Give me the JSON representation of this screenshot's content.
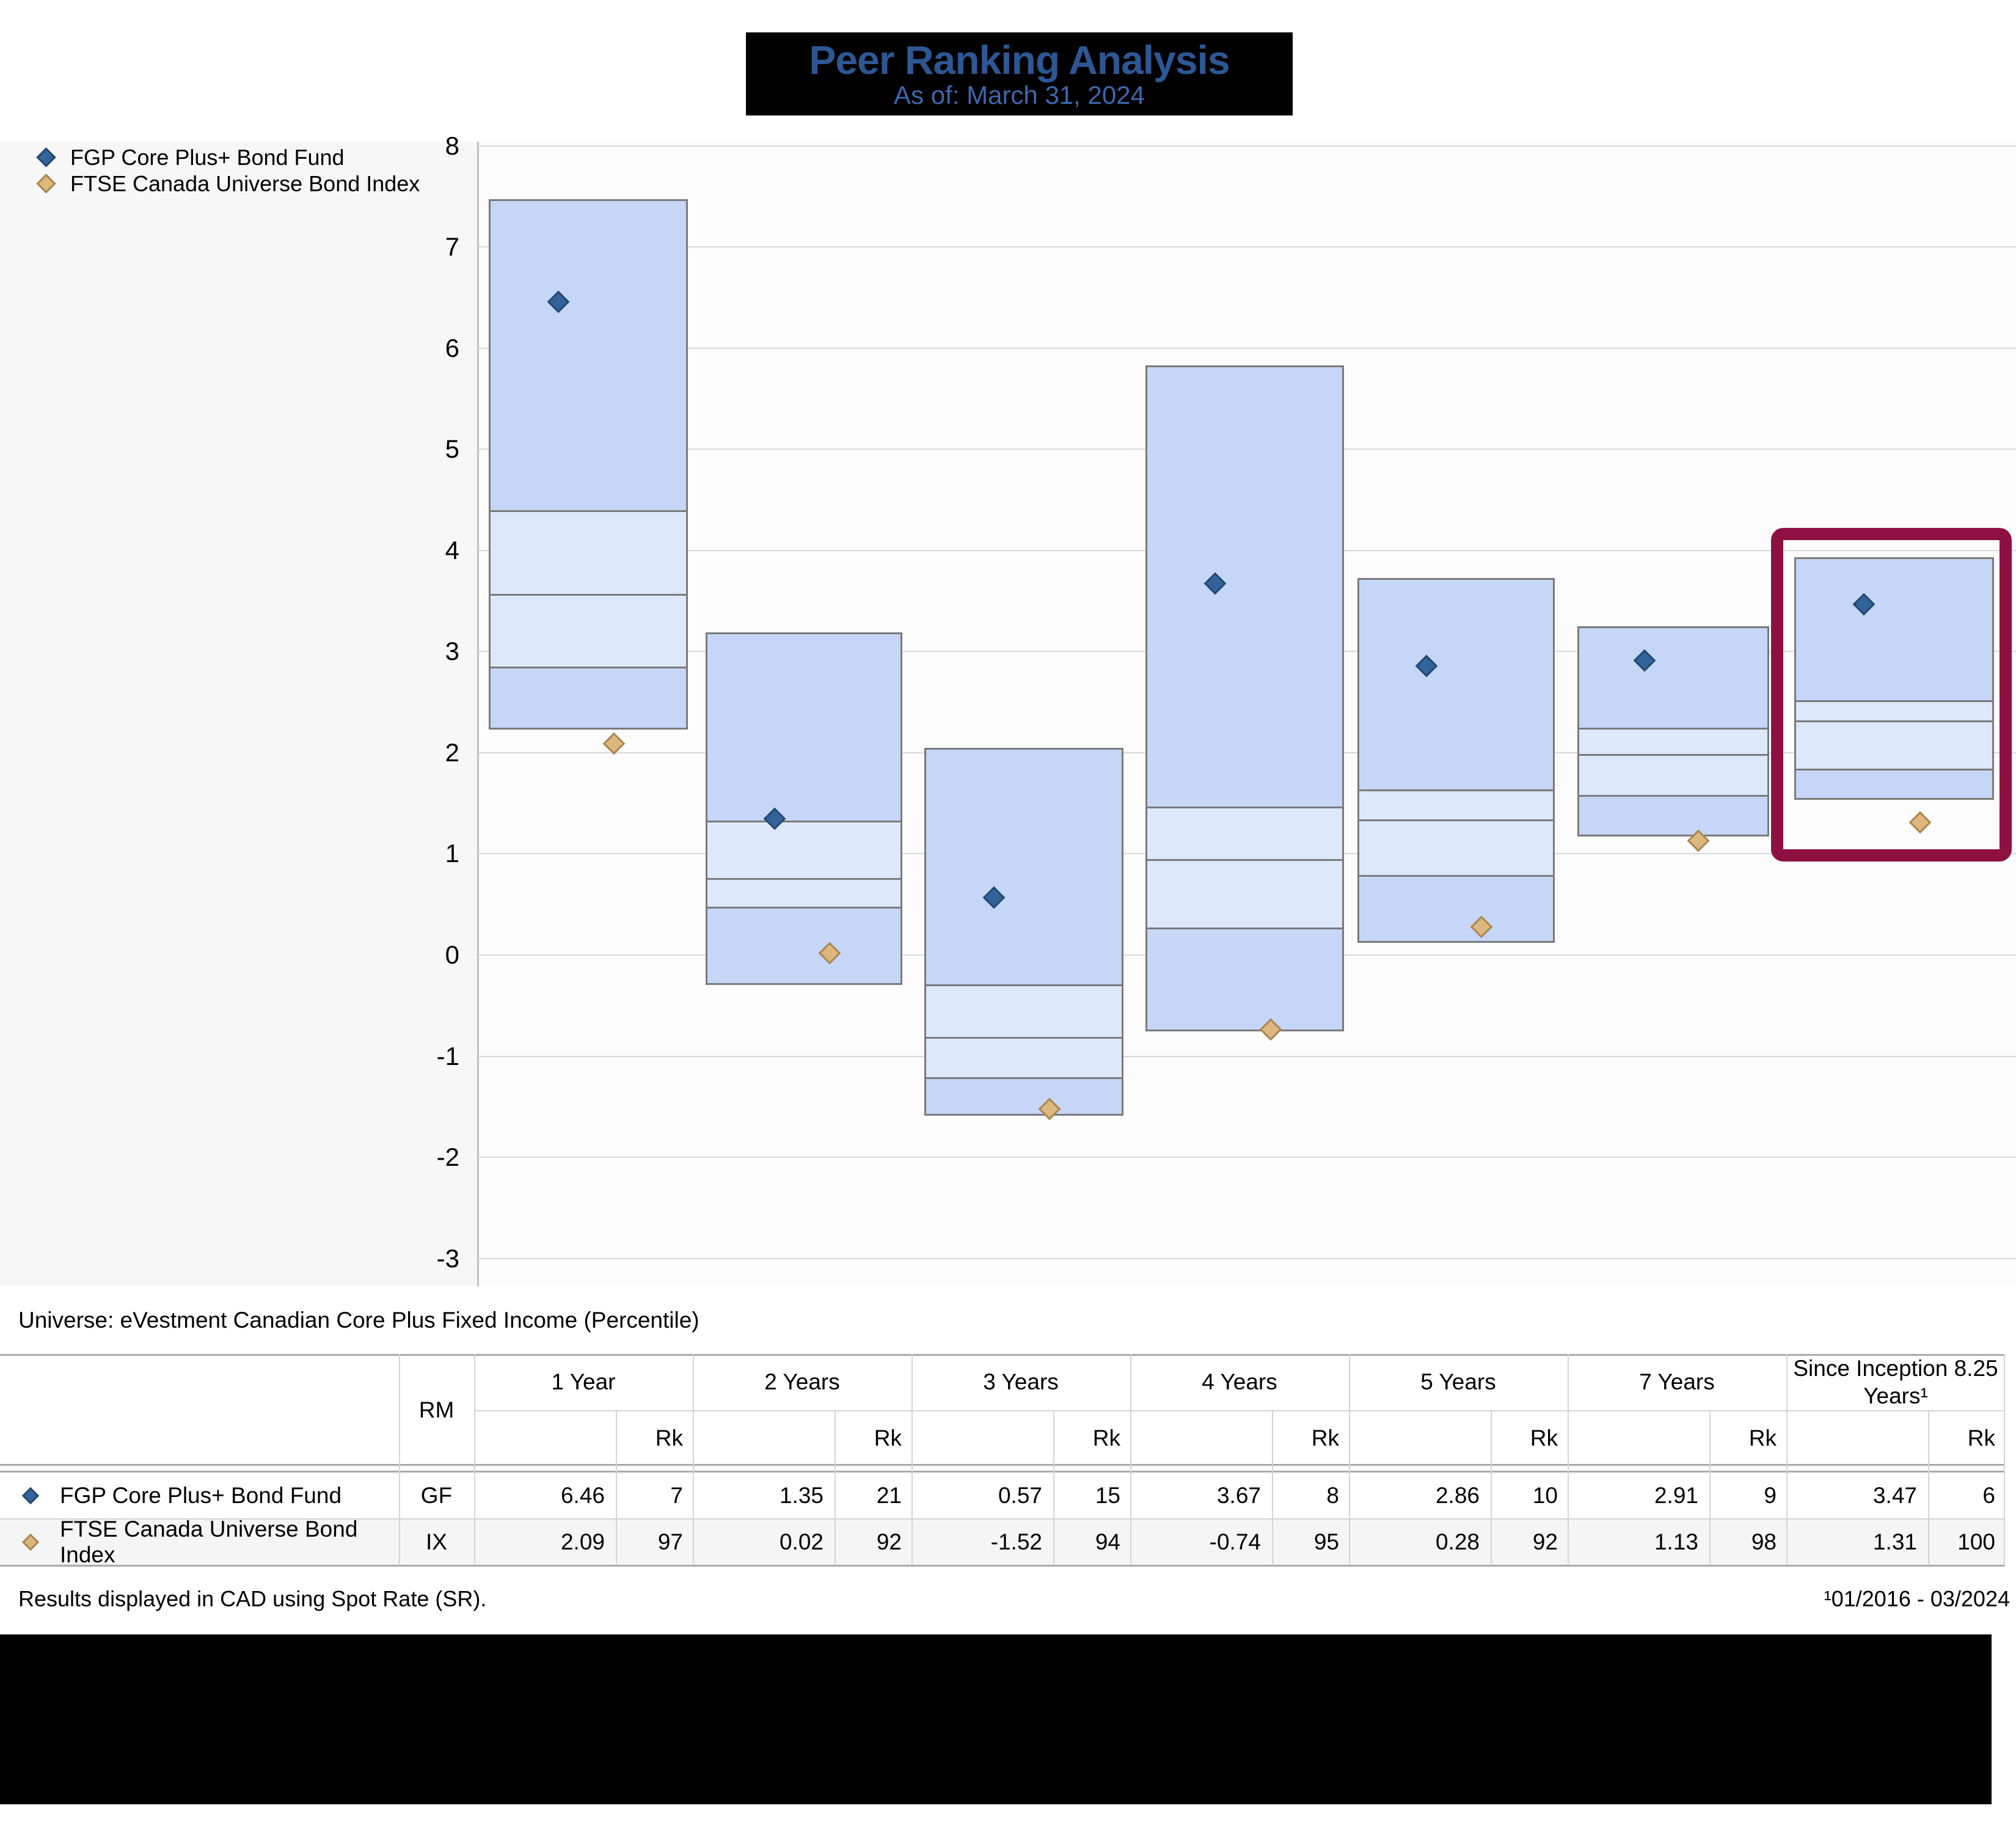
{
  "header": {
    "title": "Peer Ranking Analysis",
    "as_of": "As of: March 31, 2024"
  },
  "legend": [
    {
      "label": "FGP Core Plus+ Bond Fund",
      "marker": "fund-diamond-icon"
    },
    {
      "label": "FTSE Canada Universe Bond Index",
      "marker": "index-diamond-icon"
    }
  ],
  "chart_data": {
    "type": "floating-bar-percentile",
    "title": "Peer Ranking Analysis",
    "subtitle": "As of: March 31, 2024",
    "xlabel": "",
    "ylabel": "",
    "ylim": [
      -3,
      8
    ],
    "y_ticks": [
      8,
      7,
      6,
      5,
      4,
      3,
      2,
      1,
      0,
      -1,
      -2,
      -3
    ],
    "grid": "horizontal",
    "legend_position": "top-left",
    "categories": [
      "1 Year",
      "2 Years",
      "3 Years",
      "4 Years",
      "5 Years",
      "7 Years",
      "Since Inception 8.25 Years"
    ],
    "percentile_band_order_top_to_bottom": [
      "5th",
      "25th",
      "50th",
      "75th",
      "95th"
    ],
    "boxes": [
      {
        "category": "1 Year",
        "p05": 7.47,
        "p25": 4.4,
        "p50": 3.57,
        "p75": 2.85,
        "p95": 2.25
      },
      {
        "category": "2 Years",
        "p05": 3.19,
        "p25": 1.33,
        "p50": 0.76,
        "p75": 0.48,
        "p95": -0.28
      },
      {
        "category": "3 Years",
        "p05": 2.05,
        "p25": -0.29,
        "p50": -0.81,
        "p75": -1.21,
        "p95": -1.57
      },
      {
        "category": "4 Years",
        "p05": 5.83,
        "p25": 1.47,
        "p50": 0.95,
        "p75": 0.27,
        "p95": -0.74
      },
      {
        "category": "5 Years",
        "p05": 3.73,
        "p25": 1.64,
        "p50": 1.34,
        "p75": 0.79,
        "p95": 0.14
      },
      {
        "category": "7 Years",
        "p05": 3.25,
        "p25": 2.25,
        "p50": 1.99,
        "p75": 1.58,
        "p95": 1.19
      },
      {
        "category": "Since Inception 8.25 Years",
        "p05": 3.93,
        "p25": 2.52,
        "p50": 2.32,
        "p75": 1.84,
        "p95": 1.55
      }
    ],
    "series": [
      {
        "name": "FGP Core Plus+ Bond Fund",
        "marker": "fund-diamond",
        "values": [
          6.46,
          1.35,
          0.57,
          3.67,
          2.86,
          2.91,
          3.47
        ]
      },
      {
        "name": "FTSE Canada Universe Bond Index",
        "marker": "index-diamond",
        "values": [
          2.09,
          0.02,
          -1.52,
          -0.74,
          0.28,
          1.13,
          1.31
        ]
      }
    ],
    "highlighted_category_index": 6
  },
  "table": {
    "rm_header": "RM",
    "rk_header": "Rk",
    "periods": [
      "1 Year",
      "2 Years",
      "3 Years",
      "4 Years",
      "5 Years",
      "7 Years",
      "Since Inception 8.25 Years¹"
    ],
    "rows": [
      {
        "name": "FGP Core Plus+ Bond Fund",
        "marker": "fund-diamond-icon",
        "rm": "GF",
        "values": [
          [
            "6.46",
            "7"
          ],
          [
            "1.35",
            "21"
          ],
          [
            "0.57",
            "15"
          ],
          [
            "3.67",
            "8"
          ],
          [
            "2.86",
            "10"
          ],
          [
            "2.91",
            "9"
          ],
          [
            "3.47",
            "6"
          ]
        ]
      },
      {
        "name": "FTSE Canada Universe Bond Index",
        "marker": "index-diamond-icon",
        "rm": "IX",
        "values": [
          [
            "2.09",
            "97"
          ],
          [
            "0.02",
            "92"
          ],
          [
            "-1.52",
            "94"
          ],
          [
            "-0.74",
            "95"
          ],
          [
            "0.28",
            "92"
          ],
          [
            "1.13",
            "98"
          ],
          [
            "1.31",
            "100"
          ]
        ]
      }
    ]
  },
  "notes": {
    "universe": "Universe: eVestment Canadian Core Plus Fixed Income (Percentile)",
    "results": "Results displayed in CAD using Spot Rate (SR).",
    "date_range": "¹01/2016 - 03/2024"
  },
  "colors": {
    "title_text": "#2d5794",
    "subtitle_text": "#3e67ac",
    "box_dark": "#c5d6f7",
    "box_light": "#dee8fb",
    "box_border": "#7a7a7a",
    "fund_fill": "#33639b",
    "fund_stroke": "#24486f",
    "index_fill": "#dcb77e",
    "index_stroke": "#aa8750",
    "highlight_border": "#8e1040",
    "band_bg": "#f7f7f7",
    "plot_bg": "#fcfcfc",
    "gridline": "#d9d9d9",
    "axis_spine": "#c2c2c2",
    "table_line_light": "#d4d4d4",
    "table_line_heavy": "#a9a9a9",
    "row_alt_bg": "#f5f5f5"
  }
}
